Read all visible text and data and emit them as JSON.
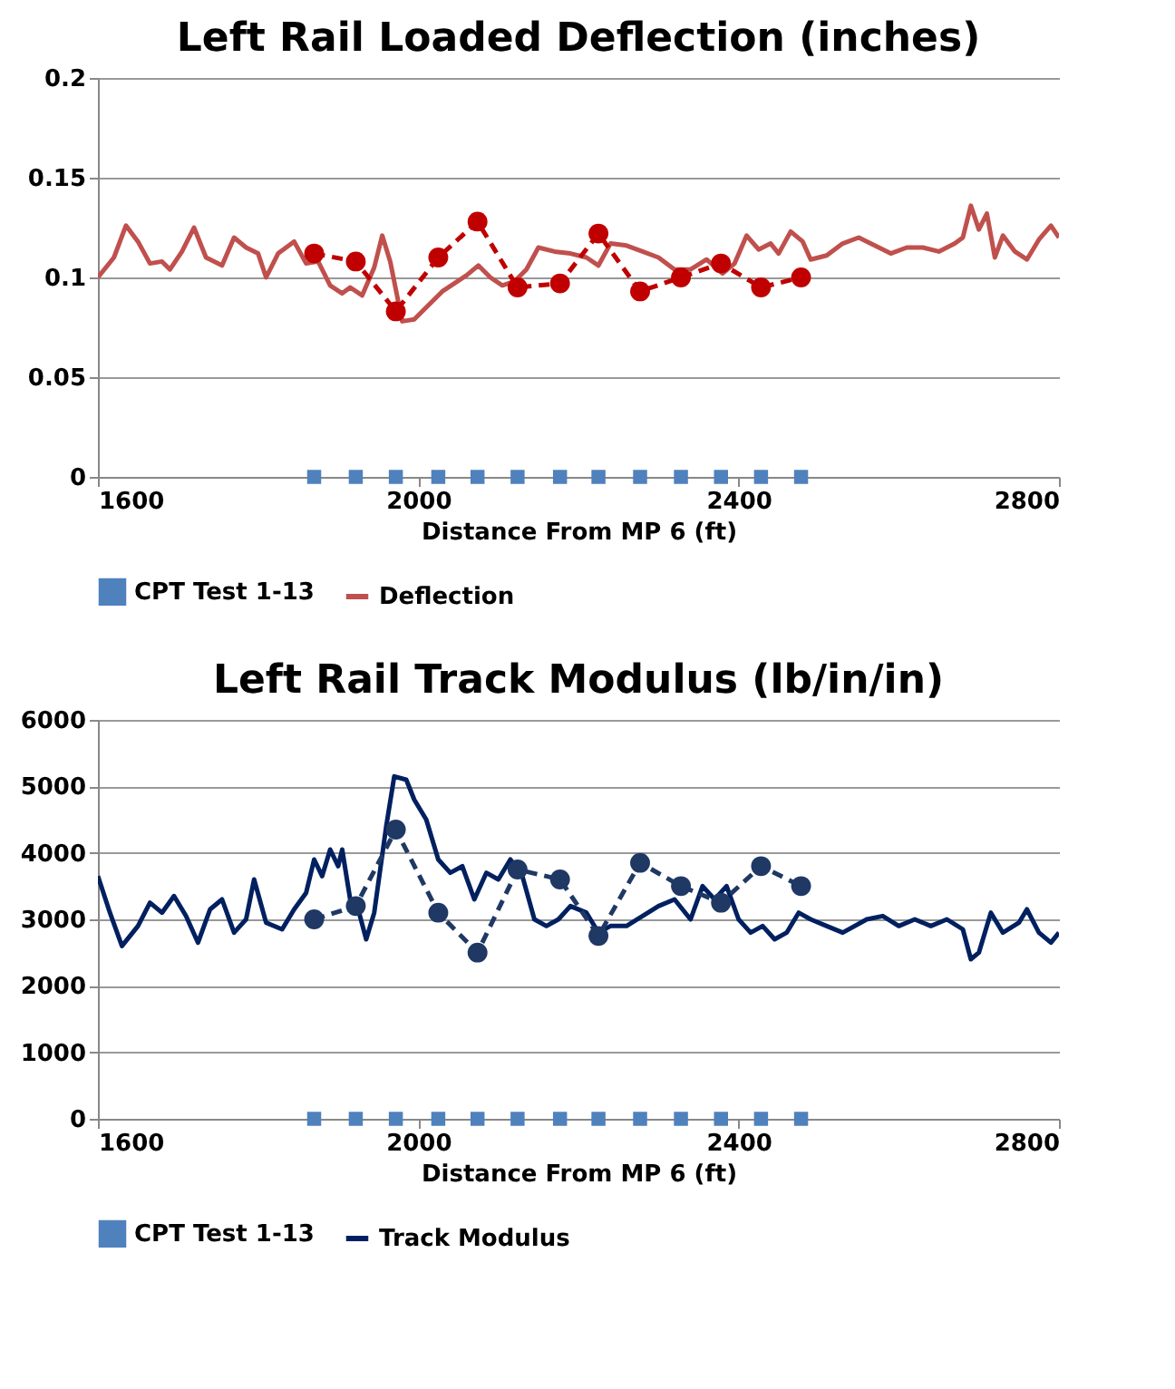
{
  "chart_data": [
    {
      "type": "line",
      "title": "Left Rail Loaded Deflection (inches)",
      "xlabel": "Distance From MP 6 (ft)",
      "xlim": [
        1600,
        2800
      ],
      "xticks": [
        1600,
        2000,
        2400,
        2800
      ],
      "ylim": [
        0,
        0.2
      ],
      "yticks": [
        0,
        0.05,
        0.1,
        0.15,
        0.2
      ],
      "grid": "y",
      "legend": "bottom",
      "series": [
        {
          "name": "CPT Test 1-13",
          "type": "scatter",
          "marker": "square",
          "color": "#4f81bd",
          "x": [
            1870,
            1922,
            1972,
            2025,
            2074,
            2124,
            2177,
            2225,
            2277,
            2328,
            2378,
            2428,
            2478
          ],
          "values": [
            0,
            0,
            0,
            0,
            0,
            0,
            0,
            0,
            0,
            0,
            0,
            0,
            0
          ]
        },
        {
          "name": "Deflection",
          "marker": "none",
          "line_style": "solid",
          "color": "#c0504d",
          "x": [
            1600,
            1620,
            1635,
            1650,
            1665,
            1680,
            1690,
            1705,
            1720,
            1735,
            1755,
            1770,
            1785,
            1800,
            1810,
            1825,
            1845,
            1860,
            1875,
            1890,
            1905,
            1915,
            1930,
            1945,
            1955,
            1965,
            1980,
            1995,
            2010,
            2030,
            2045,
            2060,
            2075,
            2090,
            2105,
            2120,
            2135,
            2150,
            2170,
            2190,
            2210,
            2225,
            2240,
            2260,
            2280,
            2300,
            2320,
            2340,
            2360,
            2380,
            2395,
            2410,
            2425,
            2440,
            2450,
            2465,
            2480,
            2490,
            2510,
            2530,
            2550,
            2570,
            2590,
            2610,
            2630,
            2650,
            2670,
            2680,
            2690,
            2700,
            2710,
            2720,
            2730,
            2745,
            2760,
            2775,
            2790,
            2800
          ],
          "values": [
            0.1,
            0.11,
            0.126,
            0.118,
            0.107,
            0.108,
            0.104,
            0.113,
            0.125,
            0.11,
            0.106,
            0.12,
            0.115,
            0.112,
            0.1,
            0.112,
            0.118,
            0.107,
            0.108,
            0.096,
            0.092,
            0.095,
            0.091,
            0.105,
            0.121,
            0.108,
            0.078,
            0.079,
            0.085,
            0.093,
            0.097,
            0.101,
            0.106,
            0.1,
            0.096,
            0.098,
            0.104,
            0.115,
            0.113,
            0.112,
            0.11,
            0.106,
            0.117,
            0.116,
            0.113,
            0.11,
            0.104,
            0.104,
            0.109,
            0.102,
            0.107,
            0.121,
            0.114,
            0.117,
            0.112,
            0.123,
            0.118,
            0.109,
            0.111,
            0.117,
            0.12,
            0.116,
            0.112,
            0.115,
            0.115,
            0.113,
            0.117,
            0.12,
            0.136,
            0.124,
            0.132,
            0.11,
            0.121,
            0.113,
            0.109,
            0.119,
            0.126,
            0.12
          ]
        },
        {
          "marker": "circle",
          "line_style": "dashed",
          "color": "#c00000",
          "x": [
            1870,
            1922,
            1972,
            2025,
            2074,
            2124,
            2177,
            2225,
            2277,
            2328,
            2378,
            2428,
            2478
          ],
          "values": [
            0.112,
            0.108,
            0.083,
            0.11,
            0.128,
            0.095,
            0.097,
            0.122,
            0.093,
            0.1,
            0.107,
            0.095,
            0.1
          ]
        }
      ]
    },
    {
      "type": "line",
      "title": "Left Rail Track Modulus (lb/in/in)",
      "xlabel": "Distance From MP 6 (ft)",
      "xlim": [
        1600,
        2800
      ],
      "xticks": [
        1600,
        2000,
        2400,
        2800
      ],
      "ylim": [
        0,
        6000
      ],
      "yticks": [
        0,
        1000,
        2000,
        3000,
        4000,
        5000,
        6000
      ],
      "grid": "y",
      "legend": "bottom",
      "series": [
        {
          "name": "CPT Test 1-13",
          "type": "scatter",
          "marker": "square",
          "color": "#4f81bd",
          "x": [
            1870,
            1922,
            1972,
            2025,
            2074,
            2124,
            2177,
            2225,
            2277,
            2328,
            2378,
            2428,
            2478
          ],
          "values": [
            0,
            0,
            0,
            0,
            0,
            0,
            0,
            0,
            0,
            0,
            0,
            0,
            0
          ]
        },
        {
          "name": "Track Modulus",
          "marker": "none",
          "line_style": "solid",
          "color": "#002060",
          "x": [
            1600,
            1615,
            1630,
            1650,
            1665,
            1680,
            1695,
            1710,
            1725,
            1740,
            1755,
            1770,
            1785,
            1795,
            1810,
            1830,
            1845,
            1860,
            1870,
            1880,
            1890,
            1900,
            1905,
            1915,
            1925,
            1935,
            1945,
            1960,
            1970,
            1985,
            1995,
            2010,
            2025,
            2040,
            2055,
            2070,
            2085,
            2100,
            2115,
            2130,
            2145,
            2160,
            2175,
            2190,
            2210,
            2225,
            2240,
            2260,
            2280,
            2300,
            2320,
            2340,
            2355,
            2370,
            2385,
            2400,
            2415,
            2430,
            2445,
            2460,
            2475,
            2490,
            2510,
            2530,
            2560,
            2580,
            2600,
            2620,
            2640,
            2660,
            2680,
            2690,
            2700,
            2715,
            2730,
            2750,
            2760,
            2775,
            2790,
            2800
          ],
          "values": [
            3650,
            3100,
            2600,
            2900,
            3250,
            3100,
            3350,
            3050,
            2650,
            3150,
            3300,
            2800,
            3000,
            3600,
            2950,
            2850,
            3150,
            3400,
            3900,
            3650,
            4050,
            3800,
            4050,
            3300,
            3150,
            2700,
            3100,
            4400,
            5150,
            5100,
            4800,
            4500,
            3900,
            3700,
            3800,
            3300,
            3700,
            3600,
            3900,
            3650,
            3000,
            2900,
            3000,
            3200,
            3100,
            2800,
            2900,
            2900,
            3050,
            3200,
            3300,
            3000,
            3500,
            3300,
            3500,
            3000,
            2800,
            2900,
            2700,
            2800,
            3100,
            3000,
            2900,
            2800,
            3000,
            3050,
            2900,
            3000,
            2900,
            3000,
            2850,
            2400,
            2500,
            3100,
            2800,
            2950,
            3150,
            2800,
            2650,
            2800
          ]
        },
        {
          "marker": "circle",
          "line_style": "dashed",
          "color": "#1f3864",
          "x": [
            1870,
            1922,
            1972,
            2025,
            2074,
            2124,
            2177,
            2225,
            2277,
            2328,
            2378,
            2428,
            2478
          ],
          "values": [
            3000,
            3200,
            4350,
            3100,
            2500,
            3750,
            3600,
            2750,
            3850,
            3500,
            3250,
            3800,
            3500
          ]
        }
      ]
    }
  ]
}
